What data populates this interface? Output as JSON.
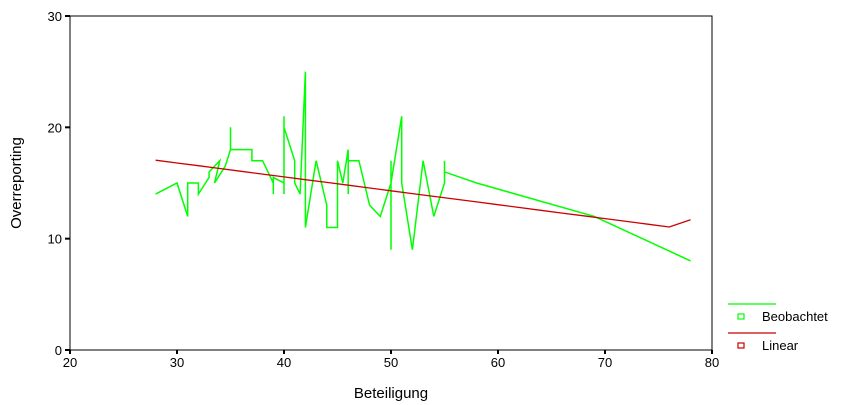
{
  "chart_data": {
    "type": "line",
    "xlabel": "Beteiligung",
    "ylabel": "Overreporting",
    "xlim": [
      20,
      80
    ],
    "ylim": [
      0,
      30
    ],
    "x_ticks": [
      "20",
      "30",
      "40",
      "50",
      "60",
      "70",
      "80"
    ],
    "y_ticks": [
      "0",
      "10",
      "20",
      "30"
    ],
    "grid": false,
    "legend_position": "bottom-right",
    "series": [
      {
        "name": "Beobachtet",
        "color": "#00ff00",
        "points": [
          [
            28,
            14
          ],
          [
            30,
            15
          ],
          [
            31,
            12
          ],
          [
            31,
            15
          ],
          [
            32,
            15
          ],
          [
            32,
            14
          ],
          [
            33,
            15.5
          ],
          [
            33,
            16
          ],
          [
            34,
            17
          ],
          [
            33.5,
            15
          ],
          [
            34.5,
            16.5
          ],
          [
            35,
            18
          ],
          [
            35,
            20
          ],
          [
            35,
            18
          ],
          [
            37,
            18
          ],
          [
            37,
            17
          ],
          [
            38,
            17
          ],
          [
            39,
            15
          ],
          [
            39,
            14
          ],
          [
            39,
            15.5
          ],
          [
            40,
            15
          ],
          [
            40,
            21
          ],
          [
            40,
            14
          ],
          [
            40,
            20
          ],
          [
            41,
            17
          ],
          [
            41,
            15
          ],
          [
            41.5,
            14
          ],
          [
            42,
            25
          ],
          [
            42,
            11
          ],
          [
            43,
            17
          ],
          [
            44,
            13
          ],
          [
            44,
            11
          ],
          [
            45,
            11
          ],
          [
            45,
            17
          ],
          [
            45.5,
            15
          ],
          [
            46,
            18
          ],
          [
            46,
            14
          ],
          [
            46,
            17
          ],
          [
            47,
            17
          ],
          [
            48,
            13
          ],
          [
            49,
            12
          ],
          [
            50,
            15
          ],
          [
            50,
            9
          ],
          [
            50,
            17
          ],
          [
            50,
            15
          ],
          [
            51,
            21
          ],
          [
            51,
            15
          ],
          [
            52,
            9
          ],
          [
            53,
            17
          ],
          [
            54,
            12
          ],
          [
            55,
            15
          ],
          [
            55,
            17
          ],
          [
            55,
            16
          ],
          [
            58,
            15
          ],
          [
            69,
            12
          ],
          [
            78,
            8
          ]
        ]
      },
      {
        "name": "Linear",
        "color": "#cc0000",
        "points": [
          [
            28,
            17.05
          ],
          [
            30,
            16.8
          ],
          [
            32,
            16.55
          ],
          [
            34,
            16.3
          ],
          [
            36,
            16.05
          ],
          [
            38,
            15.8
          ],
          [
            40,
            15.55
          ],
          [
            42,
            15.3
          ],
          [
            44,
            15.05
          ],
          [
            46,
            14.8
          ],
          [
            48,
            14.55
          ],
          [
            50,
            14.3
          ],
          [
            52,
            14.05
          ],
          [
            54,
            13.8
          ],
          [
            56,
            13.55
          ],
          [
            58,
            13.3
          ],
          [
            60,
            13.05
          ],
          [
            62,
            12.8
          ],
          [
            64,
            12.55
          ],
          [
            66,
            12.3
          ],
          [
            68,
            12.05
          ],
          [
            70,
            11.8
          ],
          [
            72,
            11.55
          ],
          [
            74,
            11.3
          ],
          [
            76,
            11.05
          ],
          [
            78,
            11.7
          ]
        ]
      }
    ]
  }
}
